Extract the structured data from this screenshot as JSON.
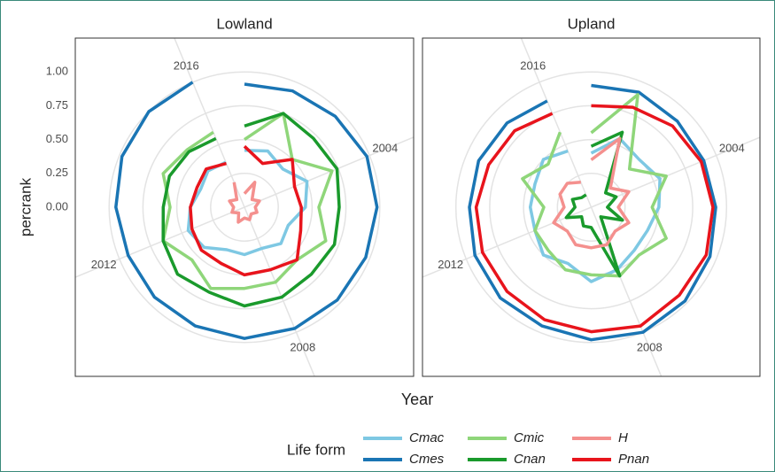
{
  "chart_data": [
    {
      "type": "polar-line",
      "title": "Lowland",
      "ylabel": "percrank",
      "x": [
        2001,
        2002,
        2003,
        2004,
        2005,
        2006,
        2007,
        2008,
        2009,
        2010,
        2011,
        2012,
        2013,
        2014,
        2015,
        2016
      ],
      "xlim": [
        2001,
        2017
      ],
      "xticks": [
        2004,
        2008,
        2012,
        2016
      ],
      "ylim": [
        0,
        1.25
      ],
      "yticks": [
        {
          "value": 0,
          "label": "0.00"
        },
        {
          "value": 0.25,
          "label": "0.25"
        },
        {
          "value": 0.5,
          "label": "0.50"
        },
        {
          "value": 0.75,
          "label": "0.75"
        },
        {
          "value": 1,
          "label": "1.00"
        }
      ],
      "series": [
        {
          "name": "Cmac",
          "color": "#7ec8e3",
          "values": [
            0.42,
            0.45,
            0.4,
            0.5,
            0.45,
            0.35,
            0.38,
            0.33,
            0.35,
            0.34,
            0.42,
            0.45,
            0.4,
            0.35,
            0.38,
            0.36
          ]
        },
        {
          "name": "Cmes",
          "color": "#1a75b4",
          "values": [
            0.91,
            0.93,
            0.95,
            0.98,
            0.98,
            0.97,
            0.97,
            0.97,
            0.97,
            0.95,
            0.94,
            0.93,
            0.95,
            0.98,
            1.0,
            1.0
          ]
        },
        {
          "name": "Cmic",
          "color": "#8fd67a",
          "values": [
            0.5,
            0.75,
            0.5,
            0.7,
            0.55,
            0.65,
            0.55,
            0.6,
            0.6,
            0.65,
            0.55,
            0.65,
            0.55,
            0.65,
            0.6,
            0.6
          ]
        },
        {
          "name": "Cnan",
          "color": "#1a9a2c",
          "values": [
            0.6,
            0.75,
            0.72,
            0.74,
            0.7,
            0.72,
            0.7,
            0.72,
            0.73,
            0.68,
            0.7,
            0.65,
            0.6,
            0.6,
            0.58,
            0.55
          ]
        },
        {
          "name": "H",
          "color": "#f4908e",
          "values": [
            0.1,
            0.2,
            0.08,
            0.12,
            0.08,
            0.1,
            0.07,
            0.1,
            0.08,
            0.12,
            0.06,
            0.1,
            0.08,
            0.12,
            0.08,
            0.2
          ]
        },
        {
          "name": "Pnan",
          "color": "#e8141c",
          "values": [
            0.45,
            0.35,
            0.5,
            0.4,
            0.42,
            0.45,
            0.55,
            0.5,
            0.5,
            0.45,
            0.45,
            0.42,
            0.4,
            0.38,
            0.4,
            0.35
          ]
        }
      ]
    },
    {
      "type": "polar-line",
      "title": "Upland",
      "x": [
        2001,
        2002,
        2003,
        2004,
        2005,
        2006,
        2007,
        2008,
        2009,
        2010,
        2011,
        2012,
        2013,
        2014,
        2015,
        2016
      ],
      "xlim": [
        2001,
        2017
      ],
      "xticks": [
        2004,
        2008,
        2012,
        2016
      ],
      "ylim": [
        0,
        1.25
      ],
      "yticks": [
        0,
        0.25,
        0.5,
        0.75,
        1
      ],
      "series": [
        {
          "name": "Cmac",
          "color": "#7ec8e3",
          "values": [
            0.4,
            0.55,
            0.5,
            0.55,
            0.5,
            0.45,
            0.45,
            0.5,
            0.55,
            0.45,
            0.5,
            0.45,
            0.45,
            0.45,
            0.5,
            0.45
          ]
        },
        {
          "name": "Cmes",
          "color": "#1a75b4",
          "values": [
            0.9,
            0.92,
            0.9,
            0.9,
            0.92,
            0.95,
            0.98,
            1.0,
            0.98,
            0.95,
            0.95,
            0.93,
            0.9,
            0.9,
            0.88,
            0.85
          ]
        },
        {
          "name": "Cmic",
          "color": "#8fd67a",
          "values": [
            0.55,
            0.9,
            0.4,
            0.6,
            0.45,
            0.6,
            0.5,
            0.55,
            0.5,
            0.5,
            0.45,
            0.45,
            0.35,
            0.55,
            0.45,
            0.6
          ]
        },
        {
          "name": "Cnan",
          "color": "#1a9a2c",
          "values": [
            0.45,
            0.6,
            0.15,
            0.2,
            0.12,
            0.25,
            0.1,
            0.55,
            0.15,
            0.15,
            0.1,
            0.2,
            0.12,
            0.15,
            0.1,
            0.1
          ]
        },
        {
          "name": "H",
          "color": "#f4908e",
          "values": [
            0.35,
            0.55,
            0.2,
            0.3,
            0.2,
            0.3,
            0.25,
            0.3,
            0.3,
            0.3,
            0.25,
            0.3,
            0.2,
            0.25,
            0.25,
            0.2
          ]
        },
        {
          "name": "Pnan",
          "color": "#e8141c",
          "values": [
            0.75,
            0.8,
            0.85,
            0.88,
            0.9,
            0.92,
            0.92,
            0.95,
            0.92,
            0.9,
            0.88,
            0.87,
            0.85,
            0.82,
            0.8,
            0.75
          ]
        }
      ]
    }
  ],
  "xlabel": "Year",
  "legend_title": "Life form"
}
